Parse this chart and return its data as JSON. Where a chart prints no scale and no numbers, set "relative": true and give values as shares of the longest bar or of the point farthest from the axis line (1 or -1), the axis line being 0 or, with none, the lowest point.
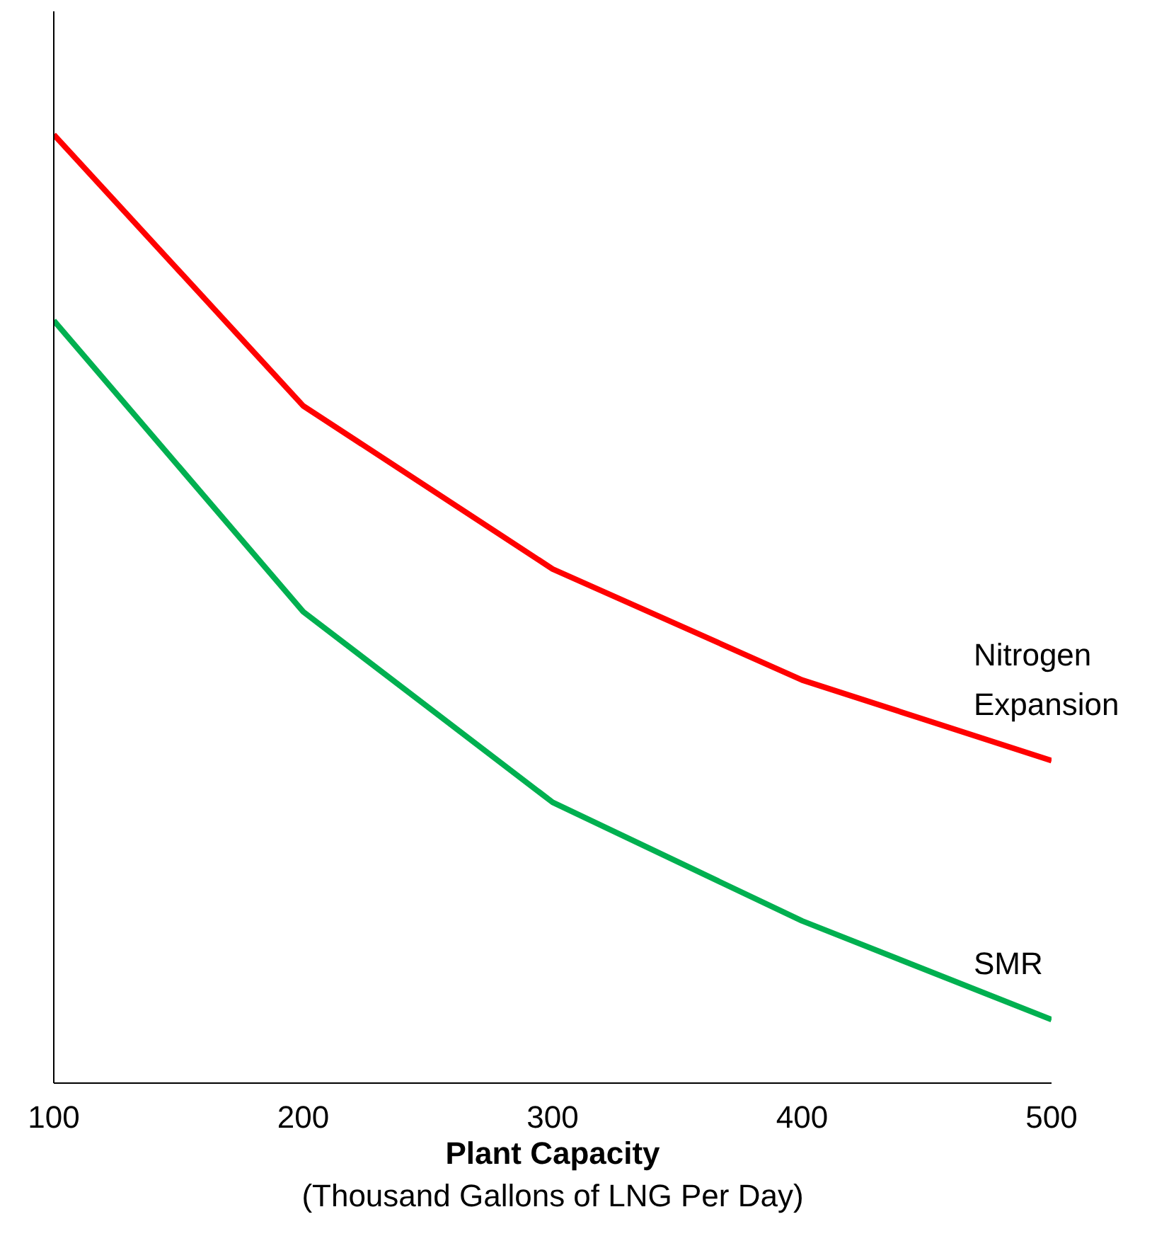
{
  "chart_data": {
    "type": "line",
    "relative": true,
    "xlabel": "Plant Capacity",
    "annotations": [
      "(Thousand Gallons of LNG Per Day)"
    ],
    "x": [
      100,
      200,
      300,
      400,
      500
    ],
    "xlim": [
      100,
      500
    ],
    "xticks": [
      100,
      200,
      300,
      400,
      500
    ],
    "legend": false,
    "grid": false,
    "series": [
      {
        "name": "Nitrogen Expansion",
        "color": "#ff0000",
        "values": [
          1,
          0.714,
          0.542,
          0.425,
          0.34
        ]
      },
      {
        "name": "SMR",
        "color": "#00b050",
        "values": [
          0.804,
          0.497,
          0.296,
          0.171,
          0.067
        ]
      }
    ]
  }
}
